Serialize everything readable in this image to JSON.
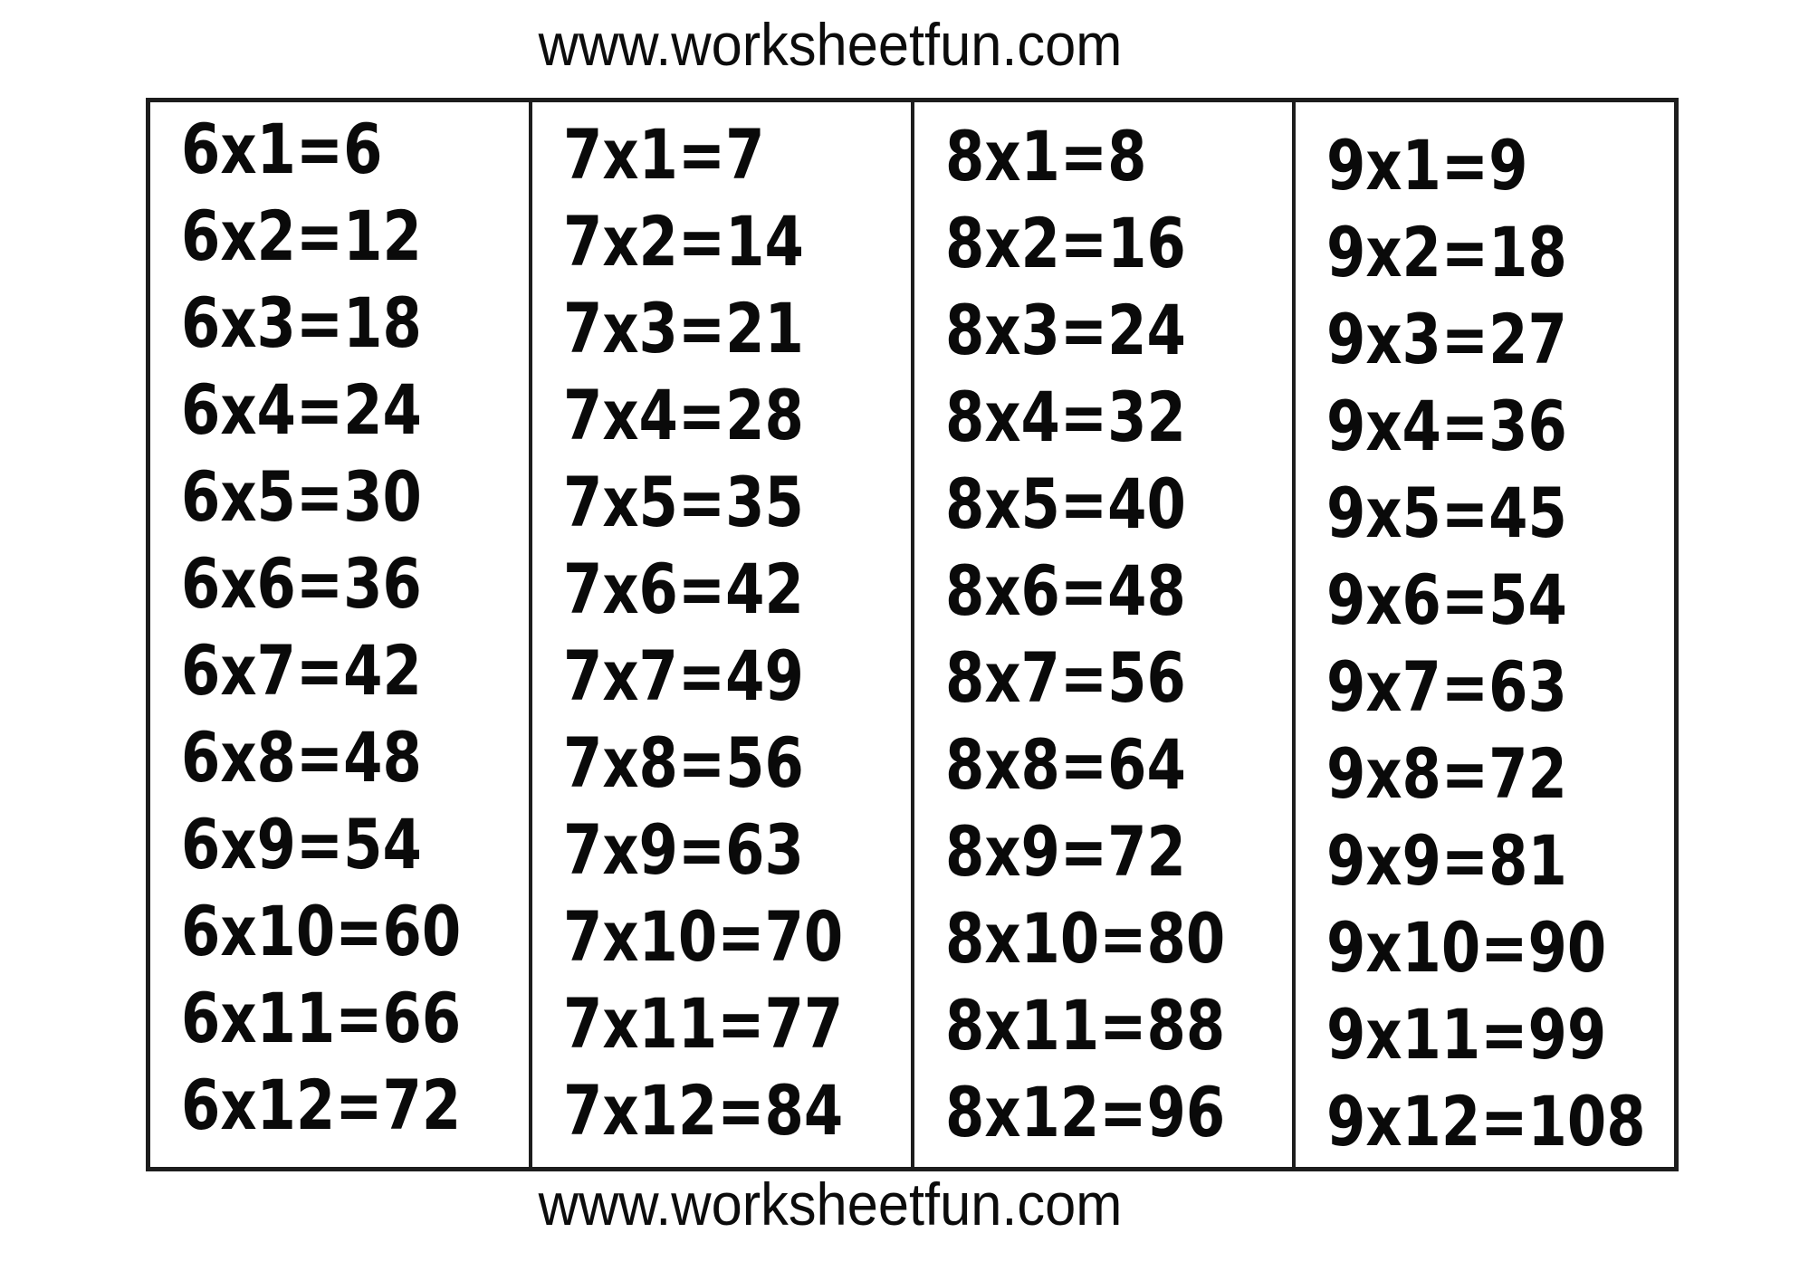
{
  "page": {
    "header_url": "www.worksheetfun.com",
    "footer_url": "www.worksheetfun.com",
    "ink_color": "#0a0a0a",
    "border_color": "#1d1d1d",
    "background_color": "#ffffff"
  },
  "table": {
    "description": "Times tables 6 to 9, each from x1 to x12",
    "columns": [
      {
        "times": 6,
        "rows": [
          "6x1=6",
          "6x2=12",
          "6x3=18",
          "6x4=24",
          "6x5=30",
          "6x6=36",
          "6x7=42",
          "6x8=48",
          "6x9=54",
          "6x10=60",
          "6x11=66",
          "6x12=72"
        ]
      },
      {
        "times": 7,
        "rows": [
          "7x1=7",
          "7x2=14",
          "7x3=21",
          "7x4=28",
          "7x5=35",
          "7x6=42",
          "7x7=49",
          "7x8=56",
          "7x9=63",
          "7x10=70",
          "7x11=77",
          "7x12=84"
        ]
      },
      {
        "times": 8,
        "rows": [
          "8x1=8",
          "8x2=16",
          "8x3=24",
          "8x4=32",
          "8x5=40",
          "8x6=48",
          "8x7=56",
          "8x8=64",
          "8x9=72",
          "8x10=80",
          "8x11=88",
          "8x12=96"
        ]
      },
      {
        "times": 9,
        "rows": [
          "9x1=9",
          "9x2=18",
          "9x3=27",
          "9x4=36",
          "9x5=45",
          "9x6=54",
          "9x7=63",
          "9x8=72",
          "9x9=81",
          "9x10=90",
          "9x11=99",
          "9x12=108"
        ]
      }
    ]
  }
}
